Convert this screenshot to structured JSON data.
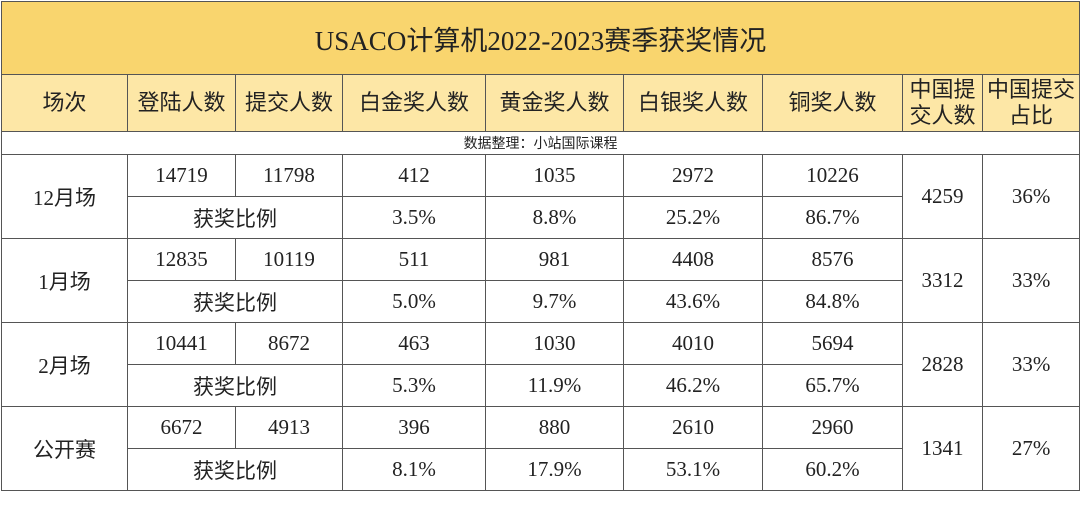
{
  "title": "USACO计算机2022-2023赛季获奖情况",
  "headers": [
    "场次",
    "登陆人数",
    "提交人数",
    "白金奖人数",
    "黄金奖人数",
    "白银奖人数",
    "铜奖人数",
    "中国提交人数",
    "中国提交占比"
  ],
  "note": "数据整理：小站国际课程",
  "groups": [
    {
      "session": "12月场",
      "logins": "14719",
      "submissions": "11798",
      "counts": [
        "412",
        "1035",
        "2972",
        "10226"
      ],
      "ratio_label": "获奖比例",
      "ratios": [
        "3.5%",
        "8.8%",
        "25.2%",
        "86.7%"
      ],
      "china_submissions": "4259",
      "china_share": "36%"
    },
    {
      "session": "1月场",
      "logins": "12835",
      "submissions": "10119",
      "counts": [
        "511",
        "981",
        "4408",
        "8576"
      ],
      "ratio_label": "获奖比例",
      "ratios": [
        "5.0%",
        "9.7%",
        "43.6%",
        "84.8%"
      ],
      "china_submissions": "3312",
      "china_share": "33%"
    },
    {
      "session": "2月场",
      "logins": "10441",
      "submissions": "8672",
      "counts": [
        "463",
        "1030",
        "4010",
        "5694"
      ],
      "ratio_label": "获奖比例",
      "ratios": [
        "5.3%",
        "11.9%",
        "46.2%",
        "65.7%"
      ],
      "china_submissions": "2828",
      "china_share": "33%"
    },
    {
      "session": "公开赛",
      "logins": "6672",
      "submissions": "4913",
      "counts": [
        "396",
        "880",
        "2610",
        "2960"
      ],
      "ratio_label": "获奖比例",
      "ratios": [
        "8.1%",
        "17.9%",
        "53.1%",
        "60.2%"
      ],
      "china_submissions": "1341",
      "china_share": "27%"
    }
  ]
}
